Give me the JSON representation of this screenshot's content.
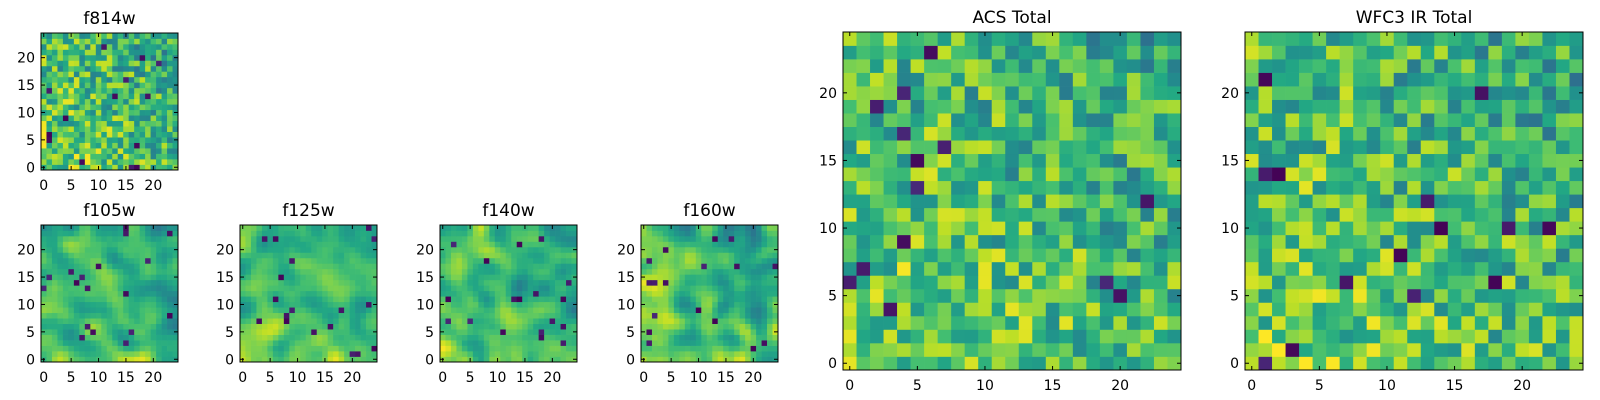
{
  "chart_data": [
    {
      "type": "heatmap",
      "title": "f814w",
      "xlabel": "",
      "ylabel": "",
      "xlim": [
        -0.5,
        24.5
      ],
      "ylim": [
        -0.5,
        24.5
      ],
      "xticks": [
        0,
        5,
        10,
        15,
        20
      ],
      "yticks": [
        0,
        5,
        10,
        15,
        20
      ],
      "grid": false,
      "colormap": "viridis",
      "shape": [
        25,
        25
      ],
      "seed": 814,
      "profile": "gradient"
    },
    {
      "type": "heatmap",
      "title": "f105w",
      "xlabel": "",
      "ylabel": "",
      "xlim": [
        -0.5,
        24.5
      ],
      "ylim": [
        -0.5,
        24.5
      ],
      "xticks": [
        0,
        5,
        10,
        15,
        20
      ],
      "yticks": [
        0,
        5,
        10,
        15,
        20
      ],
      "grid": false,
      "colormap": "viridis",
      "shape": [
        25,
        25
      ],
      "seed": 105,
      "profile": "smooth"
    },
    {
      "type": "heatmap",
      "title": "f125w",
      "xlabel": "",
      "ylabel": "",
      "xlim": [
        -0.5,
        24.5
      ],
      "ylim": [
        -0.5,
        24.5
      ],
      "xticks": [
        0,
        5,
        10,
        15,
        20
      ],
      "yticks": [
        0,
        5,
        10,
        15,
        20
      ],
      "grid": false,
      "colormap": "viridis",
      "shape": [
        25,
        25
      ],
      "seed": 125,
      "profile": "smooth"
    },
    {
      "type": "heatmap",
      "title": "f140w",
      "xlabel": "",
      "ylabel": "",
      "xlim": [
        -0.5,
        24.5
      ],
      "ylim": [
        -0.5,
        24.5
      ],
      "xticks": [
        0,
        5,
        10,
        15,
        20
      ],
      "yticks": [
        0,
        5,
        10,
        15,
        20
      ],
      "grid": false,
      "colormap": "viridis",
      "shape": [
        25,
        25
      ],
      "seed": 140,
      "profile": "smooth"
    },
    {
      "type": "heatmap",
      "title": "f160w",
      "xlabel": "",
      "ylabel": "",
      "xlim": [
        -0.5,
        24.5
      ],
      "ylim": [
        -0.5,
        24.5
      ],
      "xticks": [
        0,
        5,
        10,
        15,
        20
      ],
      "yticks": [
        0,
        5,
        10,
        15,
        20
      ],
      "grid": false,
      "colormap": "viridis",
      "shape": [
        25,
        25
      ],
      "seed": 160,
      "profile": "smooth"
    },
    {
      "type": "heatmap",
      "title": "ACS Total",
      "xlabel": "",
      "ylabel": "",
      "xlim": [
        -0.5,
        24.5
      ],
      "ylim": [
        -0.5,
        24.5
      ],
      "xticks": [
        0,
        5,
        10,
        15,
        20
      ],
      "yticks": [
        0,
        5,
        10,
        15,
        20
      ],
      "grid": false,
      "colormap": "viridis",
      "shape": [
        25,
        25
      ],
      "seed": 9001,
      "profile": "gradient"
    },
    {
      "type": "heatmap",
      "title": "WFC3 IR Total",
      "xlabel": "",
      "ylabel": "",
      "xlim": [
        -0.5,
        24.5
      ],
      "ylim": [
        -0.5,
        24.5
      ],
      "xticks": [
        0,
        5,
        10,
        15,
        20
      ],
      "yticks": [
        0,
        5,
        10,
        15,
        20
      ],
      "grid": false,
      "colormap": "viridis",
      "shape": [
        25,
        25
      ],
      "seed": 9002,
      "profile": "gradient"
    }
  ]
}
